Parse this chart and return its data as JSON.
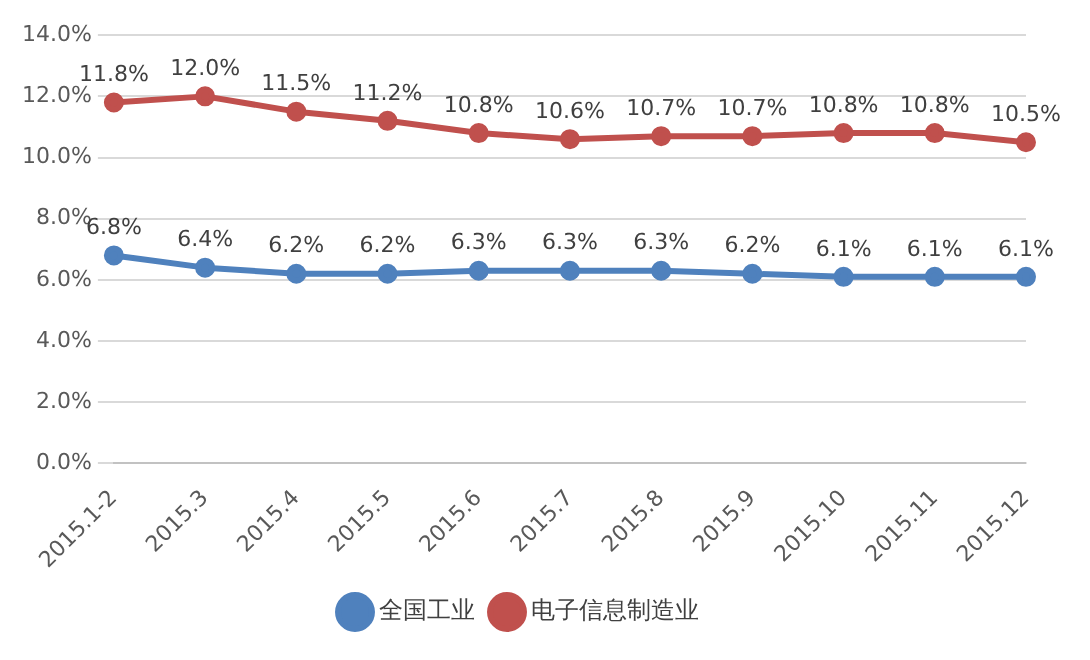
{
  "chart_data": {
    "type": "line",
    "categories": [
      "2015.1-2",
      "2015.3",
      "2015.4",
      "2015.5",
      "2015.6",
      "2015.7",
      "2015.8",
      "2015.9",
      "2015.10",
      "2015.11",
      "2015.12"
    ],
    "series": [
      {
        "name": "全国工业",
        "color": "#4f81bd",
        "values": [
          6.8,
          6.4,
          6.2,
          6.2,
          6.3,
          6.3,
          6.3,
          6.2,
          6.1,
          6.1,
          6.1
        ],
        "value_labels": [
          "6.8%",
          "6.4%",
          "6.2%",
          "6.2%",
          "6.3%",
          "6.3%",
          "6.3%",
          "6.2%",
          "6.1%",
          "6.1%",
          "6.1%"
        ]
      },
      {
        "name": "电子信息制造业",
        "color": "#c0504d",
        "values": [
          11.8,
          12.0,
          11.5,
          11.2,
          10.8,
          10.6,
          10.7,
          10.7,
          10.8,
          10.8,
          10.5
        ],
        "value_labels": [
          "11.8%",
          "12.0%",
          "11.5%",
          "11.2%",
          "10.8%",
          "10.6%",
          "10.7%",
          "10.7%",
          "10.8%",
          "10.8%",
          "10.5%"
        ]
      }
    ],
    "ylim": [
      0,
      14
    ],
    "yticks": [
      {
        "value": 0,
        "label": "0.0%"
      },
      {
        "value": 2,
        "label": "2.0%"
      },
      {
        "value": 4,
        "label": "4.0%"
      },
      {
        "value": 6,
        "label": "6.0%"
      },
      {
        "value": 8,
        "label": "8.0%"
      },
      {
        "value": 10,
        "label": "10.0%"
      },
      {
        "value": 12,
        "label": "12.0%"
      },
      {
        "value": 14,
        "label": "14.0%"
      }
    ],
    "grid": "y",
    "legend": "bottom",
    "marker": "circle",
    "line_style": "solid"
  }
}
